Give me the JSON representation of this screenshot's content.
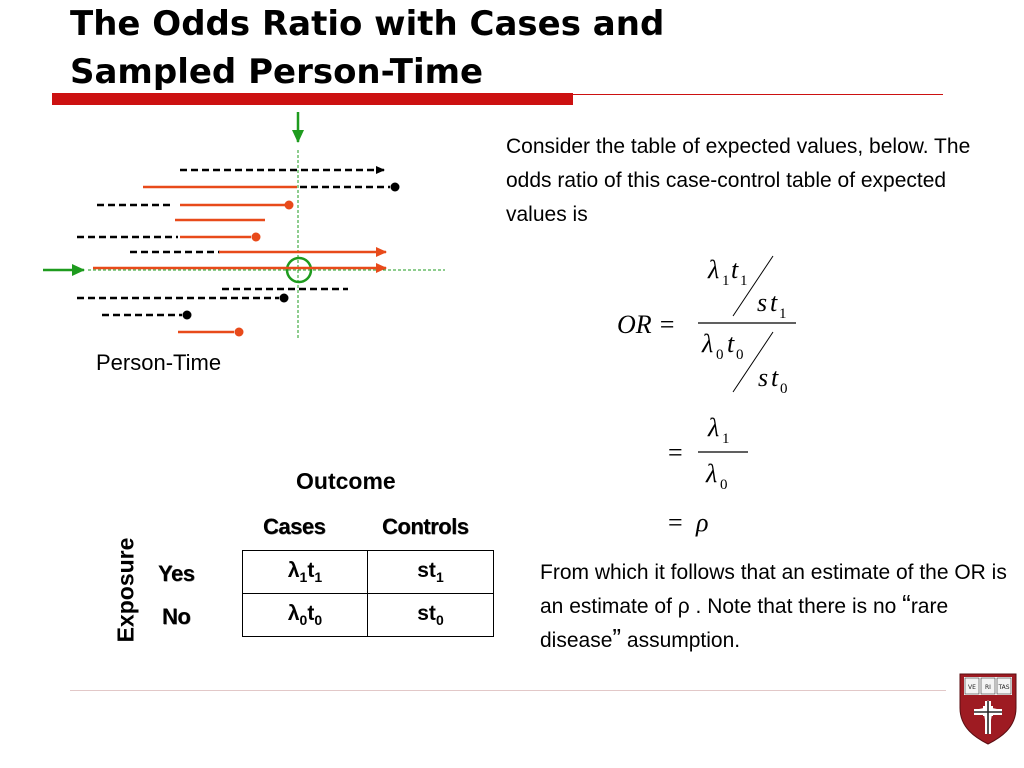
{
  "title": {
    "line1": "The Odds Ratio with Cases and",
    "line2": "Sampled Person-Time"
  },
  "diagram": {
    "person_time_label": "Person-Time"
  },
  "intro_text": "Consider the table of expected values, below.  The odds ratio of this case-control table of expected values is",
  "equation": {
    "lhs": "OR =",
    "lambda": "λ",
    "t": "t",
    "s": "s",
    "rho": "ρ",
    "equals": "=",
    "sub_1": "1",
    "sub_0": "0"
  },
  "table": {
    "outcome_label": "Outcome",
    "exposure_label": "Exposure",
    "columns": [
      "Cases",
      "Controls"
    ],
    "rows": [
      {
        "label": "Yes",
        "cases": {
          "base": "λ",
          "s1": "1",
          "mid": "t",
          "s2": "1"
        },
        "controls": {
          "base": "st",
          "s1": "1"
        }
      },
      {
        "label": "No",
        "cases": {
          "base": "λ",
          "s1": "0",
          "mid": "t",
          "s2": "0"
        },
        "controls": {
          "base": "st",
          "s1": "0"
        }
      }
    ]
  },
  "conclusion": {
    "part1": "From which it follows that an estimate of the OR is an estimate of ρ .  Note that there is no ",
    "open_quote": "“",
    "quoted": "rare disease",
    "close_quote": "”",
    "part2": " assumption."
  },
  "colors": {
    "accent_red": "#cc1111",
    "line_orange": "#e84a1a",
    "marker_green": "#1e9b1e"
  },
  "logo": {
    "name": "harvard-shield-logo",
    "mottos": [
      "VE",
      "RI",
      "TAS"
    ]
  }
}
